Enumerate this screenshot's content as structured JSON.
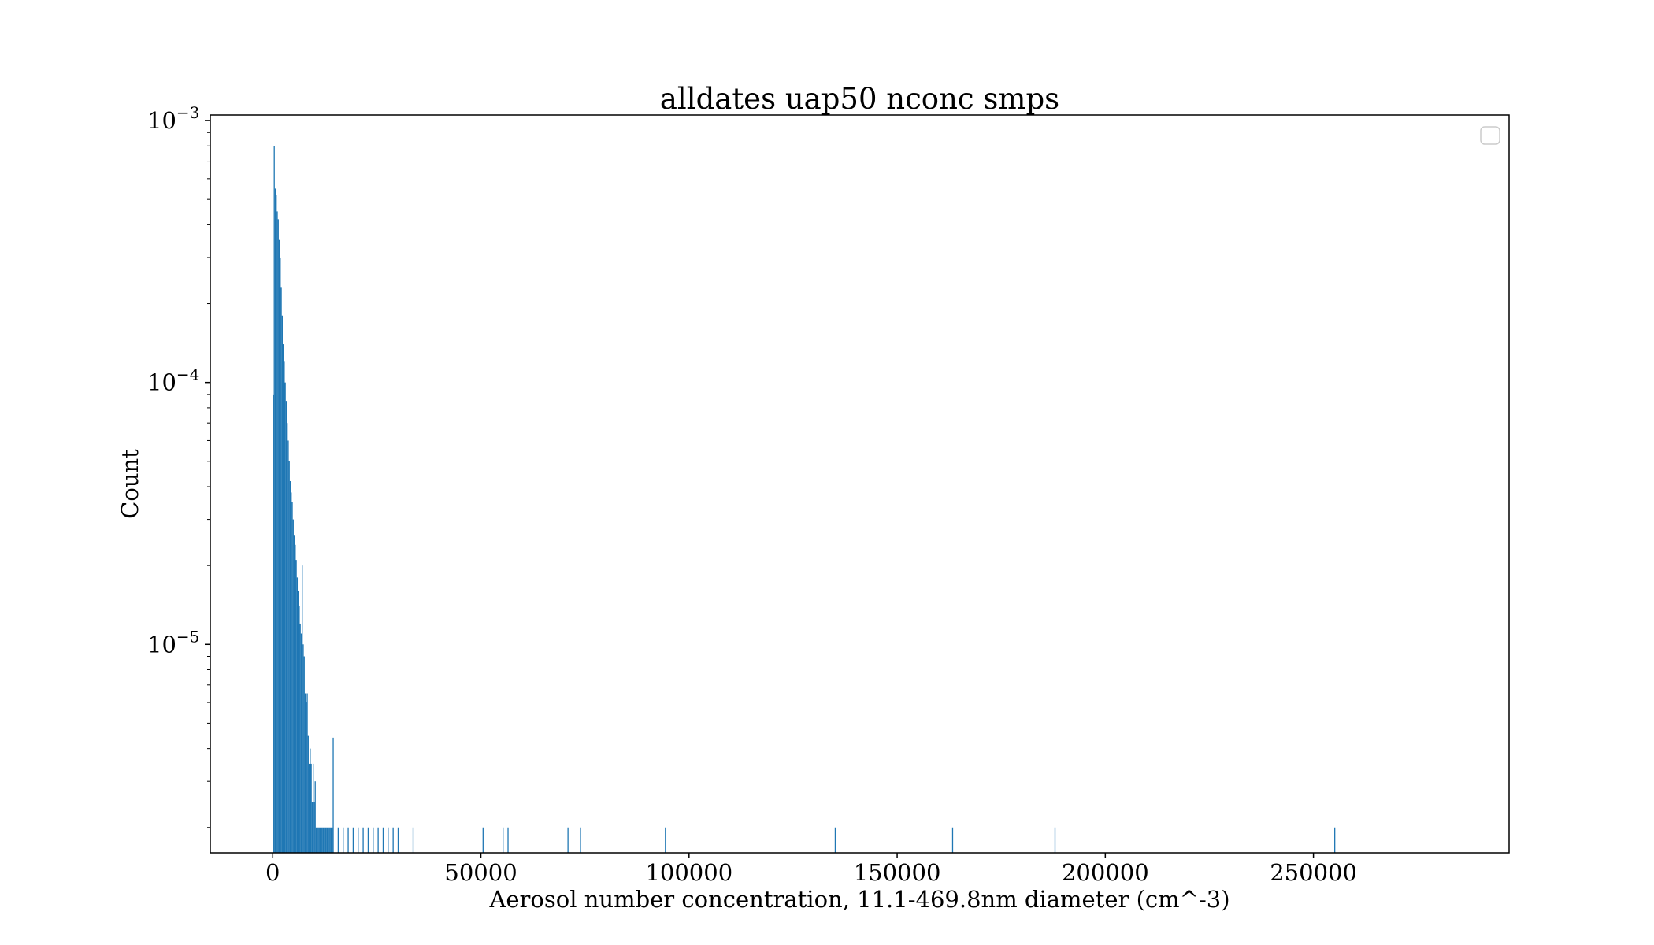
{
  "chart_data": {
    "type": "bar",
    "title": "alldates uap50 nconc smps",
    "xlabel": "Aerosol number concentration, 11.1-469.8nm diameter (cm^-3)",
    "ylabel": "Count",
    "x_scale": "linear",
    "y_scale": "log",
    "xlim": [
      -15000,
      297000
    ],
    "ylim": [
      1.6e-06,
      0.00105
    ],
    "x_ticks": [
      0,
      50000,
      100000,
      150000,
      200000,
      250000
    ],
    "x_tick_labels": [
      "0",
      "50000",
      "100000",
      "150000",
      "200000",
      "250000"
    ],
    "y_ticks": [
      {
        "value": 0.001,
        "base": "10",
        "exp": "−3"
      },
      {
        "value": 0.0001,
        "base": "10",
        "exp": "−4"
      },
      {
        "value": 1e-05,
        "base": "10",
        "exp": "−5"
      }
    ],
    "bin_width": 240,
    "color": "#1f77b4",
    "grid": false,
    "legend": {
      "placement": "top-right",
      "entries": []
    },
    "series": [
      {
        "values_x": [
          0,
          240,
          480,
          720,
          960,
          1200,
          1440,
          1680,
          1920,
          2160,
          2400,
          2640,
          2880,
          3120,
          3360,
          3600,
          3840,
          4080,
          4320,
          4560,
          4800,
          5040,
          5280,
          5520,
          5760,
          6000,
          6240,
          6480,
          6720,
          6960,
          7200,
          7440,
          7680,
          7920,
          8160,
          8400,
          8640,
          8880,
          9120,
          9360,
          9600,
          9840,
          10080,
          10320,
          10560,
          10800,
          11040,
          11280,
          11520,
          11760,
          12000,
          12240,
          12480,
          12720,
          12960,
          13200,
          13440,
          13680,
          13920,
          14160,
          14400,
          15600,
          16800,
          18000,
          19200,
          20400,
          21600,
          22800,
          24000,
          25200,
          26400,
          27600,
          28800,
          30000,
          33600,
          50400,
          55200,
          56400,
          70800,
          73800,
          94200,
          135000,
          163200,
          187800,
          255000
        ],
        "values_y": [
          9e-05,
          0.0008,
          0.00055,
          0.00052,
          0.00045,
          0.00042,
          0.00035,
          0.0003,
          0.00023,
          0.00018,
          0.00014,
          0.00012,
          0.0001,
          8.5e-05,
          7e-05,
          6e-05,
          5e-05,
          4.2e-05,
          3.8e-05,
          3.5e-05,
          3e-05,
          2.6e-05,
          2.4e-05,
          2.1e-05,
          1.8e-05,
          1.6e-05,
          1.4e-05,
          1.2e-05,
          1.1e-05,
          2e-05,
          1e-05,
          9e-06,
          6.5e-06,
          6e-06,
          6.5e-06,
          4.5e-06,
          3.5e-06,
          4e-06,
          3.5e-06,
          2.5e-06,
          3.5e-06,
          2.5e-06,
          3e-06,
          2e-06,
          2e-06,
          2e-06,
          2e-06,
          2e-06,
          2e-06,
          2e-06,
          2e-06,
          2e-06,
          2e-06,
          2e-06,
          2e-06,
          2e-06,
          2e-06,
          2e-06,
          2e-06,
          2e-06,
          4.4e-06,
          2e-06,
          2e-06,
          2e-06,
          2e-06,
          2e-06,
          2e-06,
          2e-06,
          2e-06,
          2e-06,
          2e-06,
          2e-06,
          2e-06,
          2e-06,
          2e-06,
          2e-06,
          2e-06,
          2e-06,
          2e-06,
          2e-06,
          2e-06,
          2e-06,
          2e-06,
          2e-06,
          2e-06
        ]
      }
    ]
  }
}
